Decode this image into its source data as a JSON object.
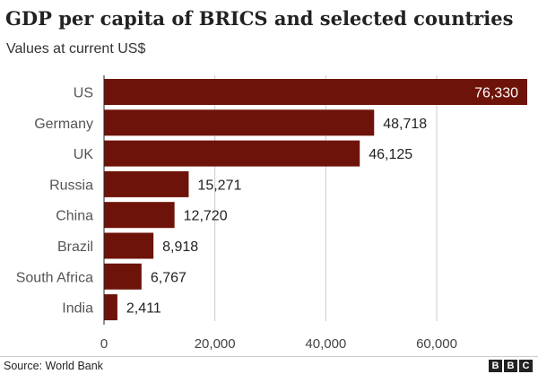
{
  "title": "GDP per capita of BRICS and selected countries",
  "subtitle": "Values at current US$",
  "source": "Source: World Bank",
  "brand": {
    "letters": [
      "B",
      "B",
      "C"
    ]
  },
  "colors": {
    "bar": "#6e1309",
    "grid": "#cccccc",
    "text": "#222222"
  },
  "chart_data": {
    "type": "bar",
    "orientation": "horizontal",
    "categories": [
      "US",
      "Germany",
      "UK",
      "Russia",
      "China",
      "Brazil",
      "South Africa",
      "India"
    ],
    "values": [
      76330,
      48718,
      46125,
      15271,
      12720,
      8918,
      6767,
      2411
    ],
    "value_labels": [
      "76,330",
      "48,718",
      "46,125",
      "15,271",
      "12,720",
      "8,918",
      "6,767",
      "2,411"
    ],
    "xticks": [
      0,
      20000,
      40000,
      60000
    ],
    "xtick_labels": [
      "0",
      "20,000",
      "40,000",
      "60,000"
    ],
    "xlim": [
      0,
      76330
    ],
    "grid": true,
    "legend": "none"
  }
}
